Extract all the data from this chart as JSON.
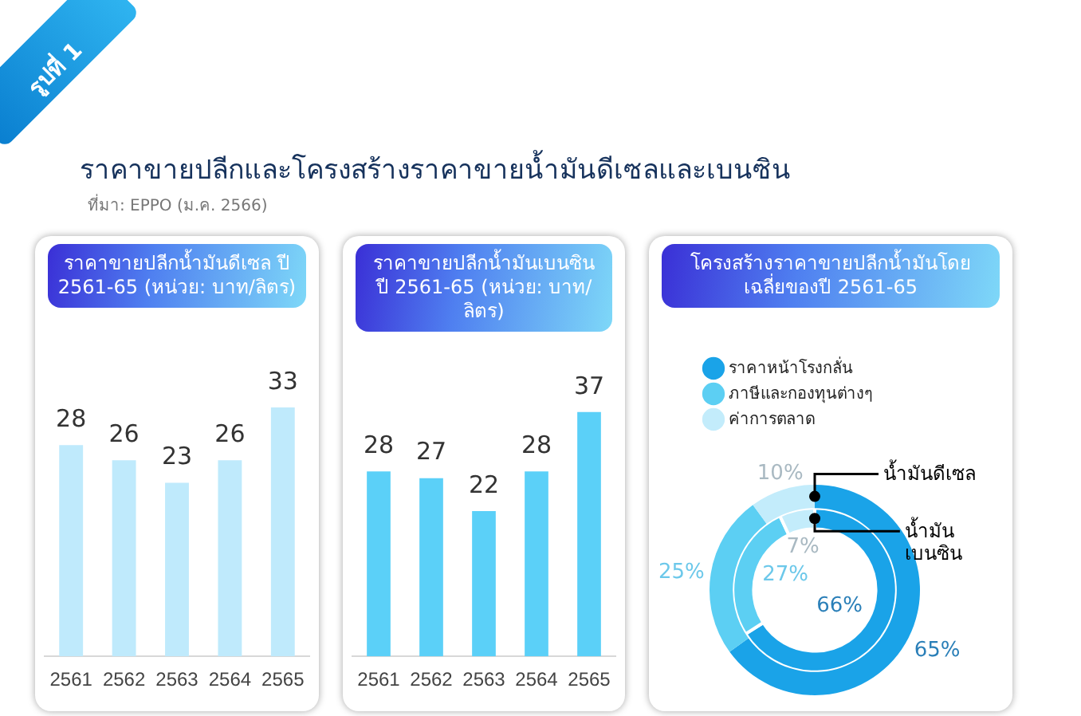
{
  "chart_data": [
    {
      "type": "other",
      "title": "ราคาขายปลีกและโครงสร้างราคาขายน้ำมันดีเซลและเบนซิน",
      "annotations": [
        "รูปที่ 1",
        "ที่มา: EPPO (ม.ค. 2566)"
      ]
    },
    {
      "type": "bar",
      "title": "ราคาขายปลีกน้ำมันดีเซล ปี 2561-65 (หน่วย: บาท/ลิตร)",
      "categories": [
        "2561",
        "2562",
        "2563",
        "2564",
        "2565"
      ],
      "values": [
        28,
        26,
        23,
        26,
        33
      ],
      "color": "#bfeafc",
      "data_labels": true,
      "grid": false,
      "tick_labels": "x"
    },
    {
      "type": "bar",
      "title": "ราคาขายปลีกน้ำมันเบนซิน ปี 2561-65 (หน่วย: บาท/ลิตร)",
      "categories": [
        "2561",
        "2562",
        "2563",
        "2564",
        "2565"
      ],
      "values": [
        28,
        27,
        22,
        28,
        37
      ],
      "color": "#5bd0f8",
      "data_labels": true,
      "grid": false,
      "tick_labels": "x"
    },
    {
      "type": "donut",
      "title": "โครงสร้างราคาขายปลีกน้ำมันโดยเฉลี่ยของปี 2561-65",
      "categories": [
        "ราคาหน้าโรงกลั่น",
        "ภาษีและกองทุนต่างๆ",
        "ค่าการตลาด"
      ],
      "legend": "top",
      "series": [
        {
          "name": "น้ำมันดีเซล",
          "colors": [
            "#1aa3e8",
            "#5ccff3",
            "#c3ecfb"
          ],
          "values": [
            65,
            25,
            10
          ],
          "value_labels": [
            "65%",
            "25%",
            "10%"
          ]
        },
        {
          "name": "น้ำมันเบนซิน",
          "colors": [
            "#1aa3e8",
            "#5ccff3",
            "#c3ecfb"
          ],
          "values": [
            66,
            27,
            7
          ],
          "value_labels": [
            "66%",
            "27%",
            "7%"
          ]
        }
      ]
    }
  ]
}
